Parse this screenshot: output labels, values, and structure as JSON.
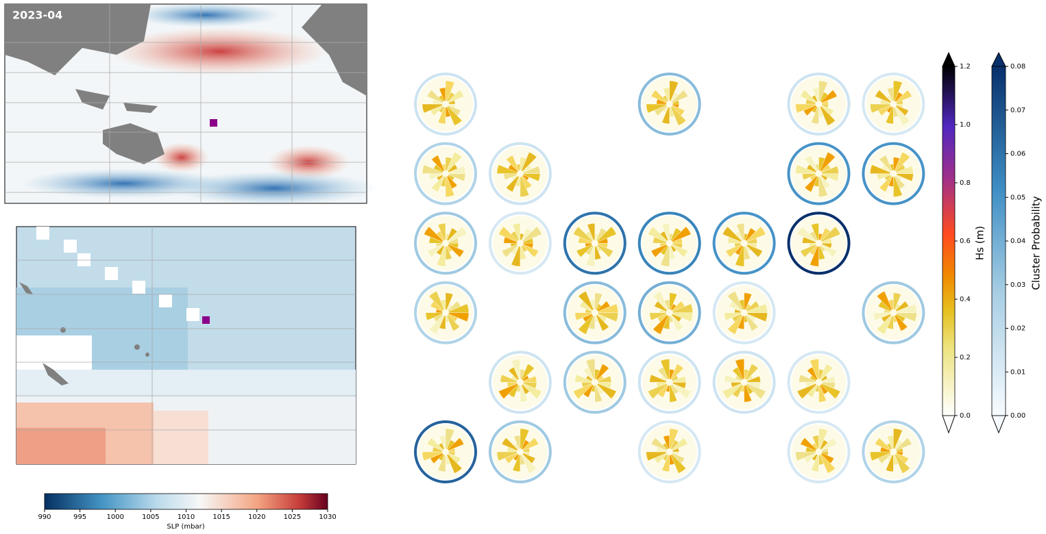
{
  "chart_data": {
    "type": "heatmap",
    "title": "2023-04",
    "slp_colorbar": {
      "label": "SLP (mbar)",
      "lim": [
        990,
        1030
      ],
      "ticks": [
        990,
        995,
        1000,
        1005,
        1010,
        1015,
        1020,
        1025,
        1030
      ]
    },
    "hs_colorbar": {
      "label": "Hs (m)",
      "lim": [
        0,
        1.2
      ],
      "ticks": [
        {
          "value": 0,
          "label": "0.0"
        },
        0.2,
        0.4,
        0.6,
        0.8,
        {
          "value": 1,
          "label": "1.0"
        },
        1.2
      ]
    },
    "probability_colorbar": {
      "label": "Cluster Probability",
      "lim": [
        0,
        0.08
      ],
      "ticks": [
        {
          "value": 0,
          "label": "0.00"
        },
        0.01,
        0.02,
        0.03,
        0.04,
        0.05,
        0.06,
        0.07,
        0.08
      ]
    },
    "cluster_probability": [
      [
        0.015,
        null,
        null,
        0.035,
        null,
        0.015,
        0.012
      ],
      [
        0.025,
        0.015,
        null,
        null,
        null,
        0.05,
        0.05
      ],
      [
        0.03,
        0.012,
        0.06,
        0.055,
        0.05,
        0.08,
        null
      ],
      [
        0.025,
        null,
        0.035,
        0.04,
        0.012,
        null,
        0.03
      ],
      [
        null,
        0.015,
        0.03,
        0.015,
        0.015,
        0.012,
        null
      ],
      [
        0.065,
        0.03,
        null,
        0.012,
        null,
        0.012,
        0.025
      ]
    ]
  }
}
